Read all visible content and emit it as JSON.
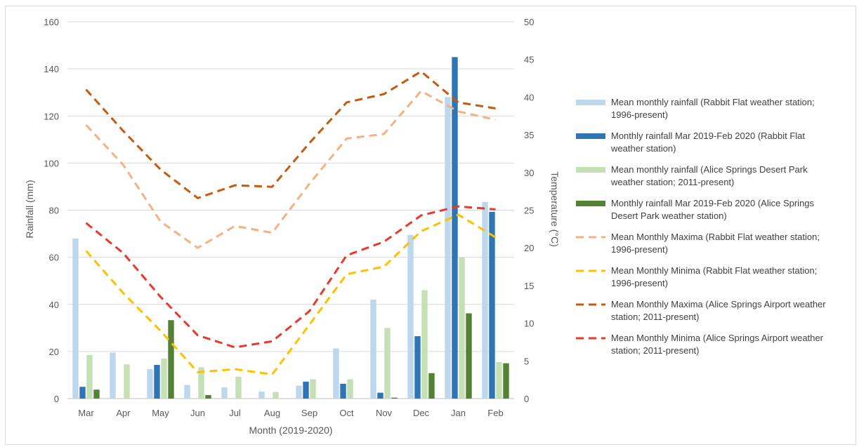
{
  "chart_data": {
    "type": "bar",
    "categories": [
      "Mar",
      "Apr",
      "May",
      "Jun",
      "Jul",
      "Aug",
      "Sep",
      "Oct",
      "Nov",
      "Dec",
      "Jan",
      "Feb"
    ],
    "xlabel": "Month (2019-2020)",
    "ylabel": "Rainfall (mm)",
    "y2label": "Temperature (°C)",
    "ylim": [
      0,
      160
    ],
    "y2lim": [
      0,
      50
    ],
    "yticks": [
      "0",
      "20",
      "40",
      "60",
      "80",
      "100",
      "120",
      "140",
      "160"
    ],
    "y2ticks": [
      "0",
      "5",
      "10",
      "15",
      "20",
      "25",
      "30",
      "35",
      "40",
      "45",
      "50"
    ],
    "grid": true,
    "legend_position": "right",
    "bar_series": [
      {
        "name": "Mean monthly rainfall (Rabbit Flat weather station; 1996-present)",
        "color": "#bdd7ee",
        "values": [
          68,
          19.5,
          12.5,
          5.8,
          4.8,
          3,
          5.5,
          21.3,
          42,
          69.5,
          128,
          83.5
        ]
      },
      {
        "name": "Monthly rainfall Mar 2019-Feb 2020 (Rabbit Flat weather station)",
        "color": "#2e75b6",
        "values": [
          5,
          0,
          14.3,
          0,
          0,
          0,
          7.2,
          6.3,
          2.5,
          26.5,
          145,
          79.3
        ]
      },
      {
        "name": "Mean monthly rainfall (Alice Springs Desert Park weather station; 2011-present)",
        "color": "#c5e0b4",
        "values": [
          18.5,
          14.5,
          17,
          13.3,
          9.3,
          2.8,
          8.2,
          8.2,
          30,
          46,
          60,
          15.5
        ]
      },
      {
        "name": "Monthly rainfall Mar 2019-Feb 2020 (Alice Springs Desert Park weather station)",
        "color": "#548235",
        "values": [
          3.8,
          0,
          33.3,
          1.5,
          0,
          0,
          0,
          0,
          0.4,
          10.8,
          36.2,
          15
        ]
      }
    ],
    "line_series": [
      {
        "name": "Mean Monthly Maxima (Rabbit Flat weather station; 1996-present)",
        "color": "#f4b183",
        "values": [
          36.3,
          31,
          23.5,
          20,
          22.9,
          22,
          28.5,
          34.5,
          35.1,
          40.8,
          38.1,
          37
        ]
      },
      {
        "name": "Mean Monthly Minima (Rabbit Flat weather station; 1996-present)",
        "color": "#ffc000",
        "values": [
          19.6,
          14,
          9,
          3.5,
          3.9,
          3.2,
          9.8,
          16.5,
          17.5,
          22.2,
          24.4,
          21.4
        ]
      },
      {
        "name": "Mean Monthly Maxima (Alice Springs Airport weather station; 2011-present)",
        "color": "#c55a11",
        "values": [
          41,
          35.5,
          30.4,
          26.6,
          28.3,
          28.1,
          33.9,
          39.3,
          40.4,
          43.4,
          39.3,
          38.5
        ]
      },
      {
        "name": "Mean Monthly Minima (Alice Springs Airport weather station; 2011-present)",
        "color": "#e8392b",
        "values": [
          23.3,
          19.3,
          13.5,
          8.4,
          6.8,
          7.6,
          11.6,
          19,
          20.8,
          24.3,
          25.5,
          25.1
        ]
      }
    ],
    "legend": [
      {
        "label": [
          "Mean monthly rainfall (Rabbit Flat weather station;",
          "1996-present)"
        ],
        "kind": "bar",
        "color": "#bdd7ee"
      },
      {
        "label": [
          "Monthly rainfall Mar 2019-Feb 2020 (Rabbit Flat",
          "weather station)"
        ],
        "kind": "bar",
        "color": "#2e75b6"
      },
      {
        "label": [
          "Mean monthly rainfall (Alice Springs Desert Park",
          "weather station; 2011-present)"
        ],
        "kind": "bar",
        "color": "#c5e0b4"
      },
      {
        "label": [
          "Monthly rainfall Mar 2019-Feb 2020 (Alice Springs",
          "Desert Park weather station)"
        ],
        "kind": "bar",
        "color": "#548235"
      },
      {
        "label": [
          "Mean Monthly Maxima (Rabbit Flat weather station;",
          "1996-present)"
        ],
        "kind": "line",
        "color": "#f4b183"
      },
      {
        "label": [
          "Mean Monthly Minima (Rabbit Flat weather station;",
          "1996-present)"
        ],
        "kind": "line",
        "color": "#ffc000"
      },
      {
        "label": [
          "Mean Monthly Maxima (Alice Springs Airport weather",
          "station; 2011-present)"
        ],
        "kind": "line",
        "color": "#c55a11"
      },
      {
        "label": [
          "Mean Monthly Minima (Alice Springs Airport weather",
          "station; 2011-present)"
        ],
        "kind": "line",
        "color": "#e8392b"
      }
    ]
  }
}
